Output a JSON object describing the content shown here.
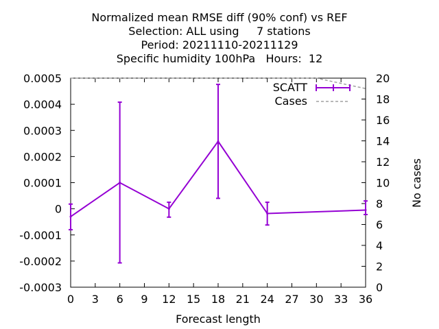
{
  "chart_data": {
    "type": "line",
    "title_lines": [
      "Normalized mean RMSE diff (90% conf) vs REF",
      "Selection: ALL using     7 stations",
      "Period: 20211110-20211129",
      "Specific humidity 100hPa   Hours:  12"
    ],
    "xlabel": "Forecast length",
    "ylabel": "",
    "y2label": "No cases",
    "xlim": [
      0,
      36
    ],
    "ylim": [
      -0.0003,
      0.0005
    ],
    "y2lim": [
      0,
      20
    ],
    "x_ticks": [
      "0",
      "3",
      "6",
      "9",
      "12",
      "15",
      "18",
      "21",
      "24",
      "27",
      "30",
      "33",
      "36"
    ],
    "y_ticks": [
      "0.0005",
      "0.0004",
      "0.0003",
      "0.0002",
      "0.0001",
      "0",
      "-0.0001",
      "-0.0002",
      "-0.0003"
    ],
    "y2_ticks": [
      "20",
      "18",
      "16",
      "14",
      "12",
      "10",
      "8",
      "6",
      "4",
      "2",
      "0"
    ],
    "grid": false,
    "legend_position": "top-right",
    "series": [
      {
        "name": "SCATT",
        "color": "#9400d3",
        "axis": "y",
        "x": [
          0,
          6,
          12,
          18,
          24,
          36
        ],
        "values": [
          -3e-05,
          0.0001,
          0.0,
          0.000258,
          -1.8e-05,
          -5e-06
        ],
        "err_low": [
          -8e-05,
          -0.000207,
          -3.2e-05,
          4e-05,
          -6.2e-05,
          -2.2e-05
        ],
        "err_high": [
          1.8e-05,
          0.000408,
          2.5e-05,
          0.000476,
          2.5e-05,
          3e-05
        ]
      },
      {
        "name": "Cases",
        "color": "#a0a0a0",
        "axis": "y2",
        "style": "dashed",
        "x": [
          0,
          6,
          12,
          18,
          24,
          30,
          36
        ],
        "values": [
          20,
          20,
          20,
          20,
          20,
          20,
          19
        ]
      }
    ]
  }
}
